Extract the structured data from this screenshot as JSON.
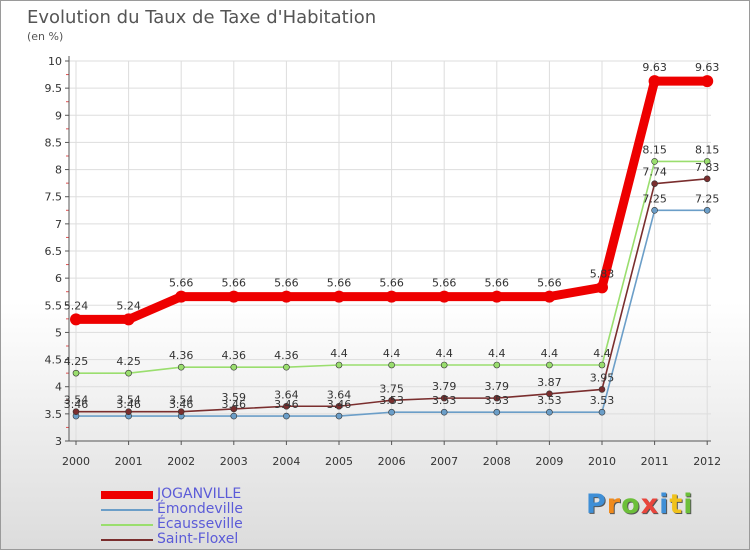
{
  "title": "Evolution du Taux de Taxe d'Habitation",
  "subtitle": "(en %)",
  "brand": {
    "text": "Proxiti",
    "letter_colors": [
      "#3f8fd6",
      "#f08a1c",
      "#6cbf3a",
      "#e8453c",
      "#3f8fd6",
      "#f0c21c",
      "#6cbf3a"
    ]
  },
  "chart_data": {
    "type": "line",
    "x": [
      "2000",
      "2001",
      "2002",
      "2003",
      "2004",
      "2005",
      "2006",
      "2007",
      "2008",
      "2009",
      "2010",
      "2011",
      "2012"
    ],
    "ylim": [
      3,
      10
    ],
    "yticks": [
      "3",
      "3.5",
      "4",
      "4.5",
      "5",
      "5.5",
      "6",
      "6.5",
      "7",
      "7.5",
      "8",
      "8.5",
      "9",
      "9.5",
      "10"
    ],
    "grid": true,
    "legend_position": "bottom-left",
    "series": [
      {
        "name": "JOGANVILLE",
        "color": "#ee0000",
        "values": [
          5.24,
          5.24,
          5.66,
          5.66,
          5.66,
          5.66,
          5.66,
          5.66,
          5.66,
          5.66,
          5.83,
          9.63,
          9.63
        ],
        "labels": [
          "5.24",
          "5.24",
          "5.66",
          "5.66",
          "5.66",
          "5.66",
          "5.66",
          "5.66",
          "5.66",
          "5.66",
          "5.83",
          "9.63",
          "9.63"
        ]
      },
      {
        "name": "Émondeville",
        "color": "#6b9ec8",
        "values": [
          3.46,
          3.46,
          3.46,
          3.46,
          3.46,
          3.46,
          3.53,
          3.53,
          3.53,
          3.53,
          3.53,
          7.25,
          7.25
        ],
        "labels": [
          "3.46",
          "3.46",
          "3.46",
          "3.46",
          "3.46",
          "3.46",
          "3.53",
          "3.53",
          "3.53",
          "3.53",
          "3.53",
          "7.25",
          "7.25"
        ]
      },
      {
        "name": "Écausseville",
        "color": "#9ade6e",
        "values": [
          4.25,
          4.25,
          4.36,
          4.36,
          4.36,
          4.4,
          4.4,
          4.4,
          4.4,
          4.4,
          4.4,
          8.15,
          8.15
        ],
        "labels": [
          "4.25",
          "4.25",
          "4.36",
          "4.36",
          "4.36",
          "4.4",
          "4.4",
          "4.4",
          "4.4",
          "4.4",
          "4.4",
          "8.15",
          "8.15"
        ]
      },
      {
        "name": "Saint-Floxel",
        "color": "#7a2e2e",
        "values": [
          3.54,
          3.54,
          3.54,
          3.59,
          3.64,
          3.64,
          3.75,
          3.79,
          3.79,
          3.87,
          3.95,
          7.74,
          7.83
        ],
        "labels": [
          "3.54",
          "3.54",
          "3.54",
          "3.59",
          "3.64",
          "3.64",
          "3.75",
          "3.79",
          "3.79",
          "3.87",
          "3.95",
          "7.74",
          "7.83"
        ]
      }
    ]
  }
}
